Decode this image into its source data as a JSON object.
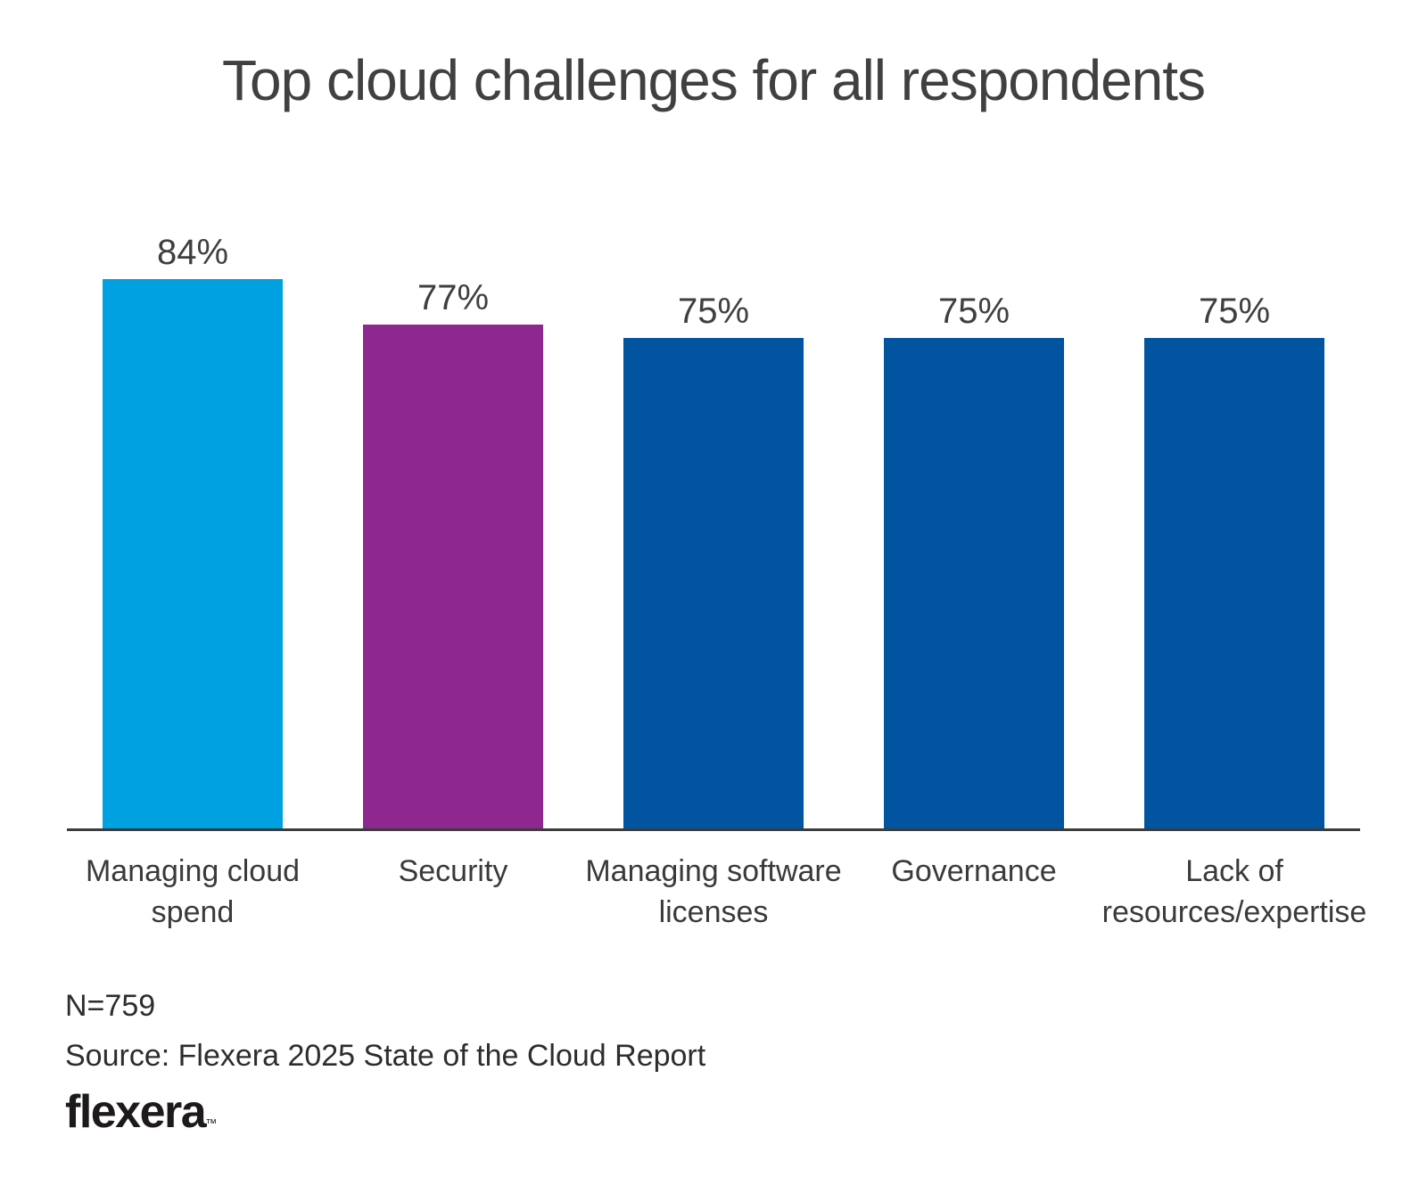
{
  "chart_data": {
    "type": "bar",
    "title": "Top cloud challenges for all respondents",
    "xlabel": "",
    "ylabel": "",
    "ylim": [
      0,
      100
    ],
    "grid": false,
    "legend": "none",
    "axis_color": "#3c3c3c",
    "categories": [
      "Managing cloud spend",
      "Security",
      "Managing software licenses",
      "Governance",
      "Lack of resources/expertise"
    ],
    "values": [
      84,
      77,
      75,
      75,
      75
    ],
    "bars": [
      {
        "category": "Managing cloud spend",
        "category_lines": [
          "Managing cloud",
          "spend"
        ],
        "value": 84,
        "value_label": "84%",
        "color": "#00a1e0"
      },
      {
        "category": "Security",
        "category_lines": [
          "Security"
        ],
        "value": 77,
        "value_label": "77%",
        "color": "#8e2890"
      },
      {
        "category": "Managing software licenses",
        "category_lines": [
          "Managing software",
          "licenses"
        ],
        "value": 75,
        "value_label": "75%",
        "color": "#0054a0"
      },
      {
        "category": "Governance",
        "category_lines": [
          "Governance"
        ],
        "value": 75,
        "value_label": "75%",
        "color": "#0054a0"
      },
      {
        "category": "Lack of resources/expertise",
        "category_lines": [
          "Lack of",
          "resources/expertise"
        ],
        "value": 75,
        "value_label": "75%",
        "color": "#0054a0"
      }
    ]
  },
  "footer": {
    "sample_size": "N=759",
    "source": "Source: Flexera 2025 State of the Cloud Report",
    "logo_text": "flexera",
    "logo_tm": "™"
  }
}
